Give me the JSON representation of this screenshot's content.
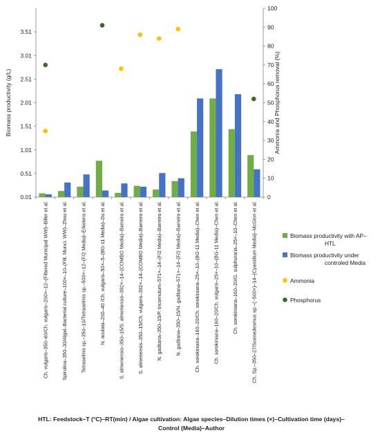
{
  "chart_data": {
    "type": "bar",
    "title": "",
    "xlabel": "",
    "ylabel": "Biomass productivity (g/L)",
    "y2label": "Ammonia and Phosphorus removal (%)",
    "ylim": [
      0.01,
      4.01
    ],
    "y2lim": [
      0,
      100
    ],
    "yticks": [
      "0.01",
      "0.51",
      "1.01",
      "1.51",
      "2.01",
      "2.51",
      "3.01",
      "3.51"
    ],
    "y2ticks": [
      "0",
      "10",
      "20",
      "30",
      "40",
      "50",
      "60",
      "70",
      "80",
      "90",
      "100"
    ],
    "grid": false,
    "legend_position": "right",
    "categories": [
      "Ch. vulgaris–350–60/Ch. vulgaris–200×–12–(Filtered Municipal WW)–Biller et al.",
      "Spirulina–350–30/Algal–Bacterial culture–100×–10–(Filt. Munci. WW)–Zhou et al.",
      "Tetraselmis sp.–350–10/Tetraselmis sp.–500×–12–(F/2 Media)–Erkelens et al.",
      "N. oculata–200–40 /Ch. vulgaris–50×–5–(BG-11 Media)–Du et al.",
      "S. almeriensis–350–15/S. almeriensis–392×–14–(COMBO Media)–Barreiro et al.",
      "S. almeriensis–350–15/Ch. vulgaris–392×–14–(COMBO Media)–Barreiro et al.",
      "N. gaditana–350–15/P. tricornutum–571×–14–(F/2 Media)–Barreiro et al.",
      "N. gaditana–350–15/N. gaditana–571×–14–(F/2 Media)–Barreiro et al.",
      "Ch. sorokiniana–160–20/Ch. sorokiniana–25×–10–(BG-11 Media)–Chen et al.",
      "Ch. sorokiniana–160–20/Ch. vulgaris–25×–10–(BG-11 Media)–Chen et al.",
      "Ch. sorokiniana–160–20/G. sulphuraria–25×–10–Chen et al.",
      "Ch. Sp.–350–27/Scenedesmus sp.–(~500×)–14–(Cyanidium Media)–McGinn et al."
    ],
    "series": [
      {
        "name": "Biomass productivity with AP–HTL",
        "axis": "left",
        "kind": "bar",
        "color": "#70ad47",
        "values": [
          0.09,
          0.14,
          0.23,
          0.78,
          0.1,
          0.25,
          0.17,
          0.35,
          1.4,
          2.1,
          1.45,
          0.9
        ]
      },
      {
        "name": "Biomass productivity under controled Media",
        "axis": "left",
        "kind": "bar",
        "color": "#4472c4",
        "values": [
          0.07,
          0.32,
          0.49,
          0.15,
          0.3,
          0.23,
          0.52,
          0.41,
          2.1,
          2.72,
          2.19,
          0.6
        ]
      },
      {
        "name": "Ammonia",
        "axis": "right",
        "kind": "scatter",
        "color": "#ffc000",
        "values": [
          35,
          null,
          null,
          null,
          68,
          86,
          84,
          89,
          null,
          null,
          null,
          null
        ]
      },
      {
        "name": "Phosphorus",
        "axis": "right",
        "kind": "scatter",
        "color": "#38682a",
        "values": [
          70,
          null,
          null,
          91,
          null,
          null,
          null,
          null,
          null,
          null,
          null,
          52
        ]
      }
    ],
    "caption": [
      "HTL: Feedstock–T (°C)–RT(min) / Algae cultivation: Algae species–Dilution times (×)–Cultivation time (days)–",
      "Control (Media)–Author"
    ]
  }
}
